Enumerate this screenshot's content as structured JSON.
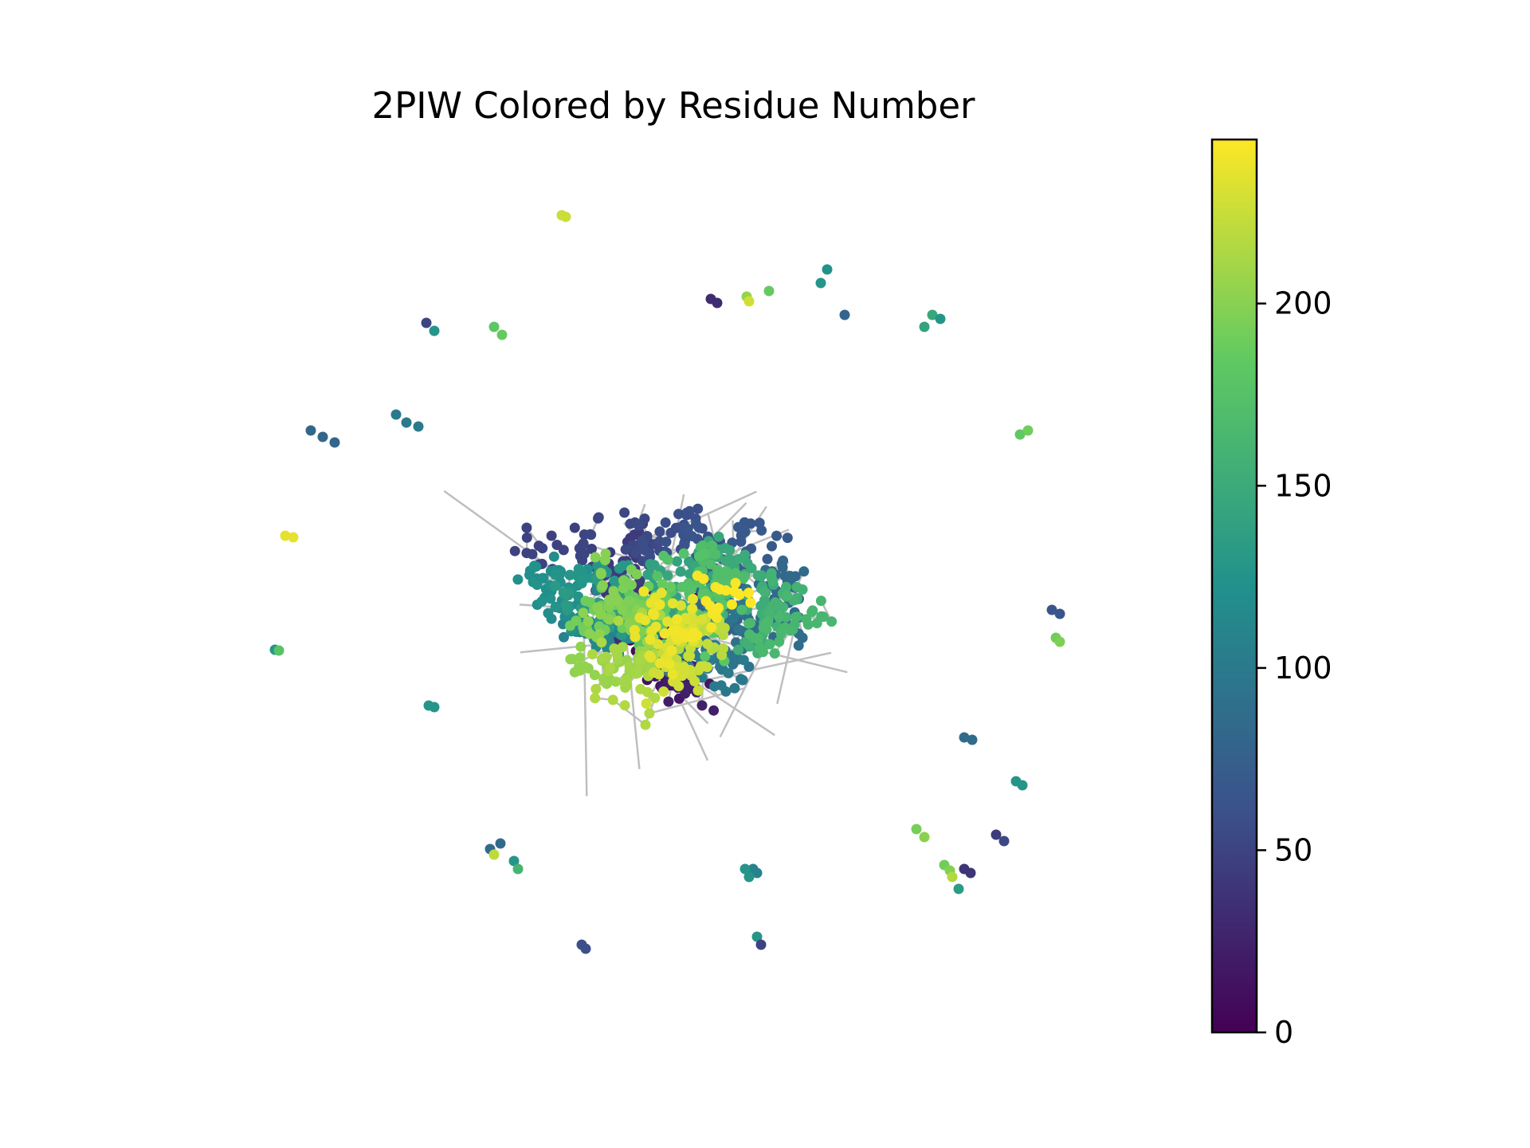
{
  "chart_data": {
    "type": "scatter",
    "title": "2PIW Colored by Residue Number",
    "xlabel": "",
    "ylabel": "",
    "axes_visible": false,
    "grid": false,
    "edges_color": "#bfbfbf",
    "colormap": "viridis",
    "colormap_stops": [
      "#440154",
      "#3b528b",
      "#21918c",
      "#5ec962",
      "#fde725"
    ],
    "colorbar": {
      "range": [
        0,
        245
      ],
      "ticks": [
        0,
        50,
        100,
        150,
        200
      ],
      "tick_labels": [
        "0",
        "50",
        "100",
        "150",
        "200"
      ],
      "placement": "right"
    },
    "node_count": 1300,
    "value_range": [
      0,
      245
    ]
  }
}
